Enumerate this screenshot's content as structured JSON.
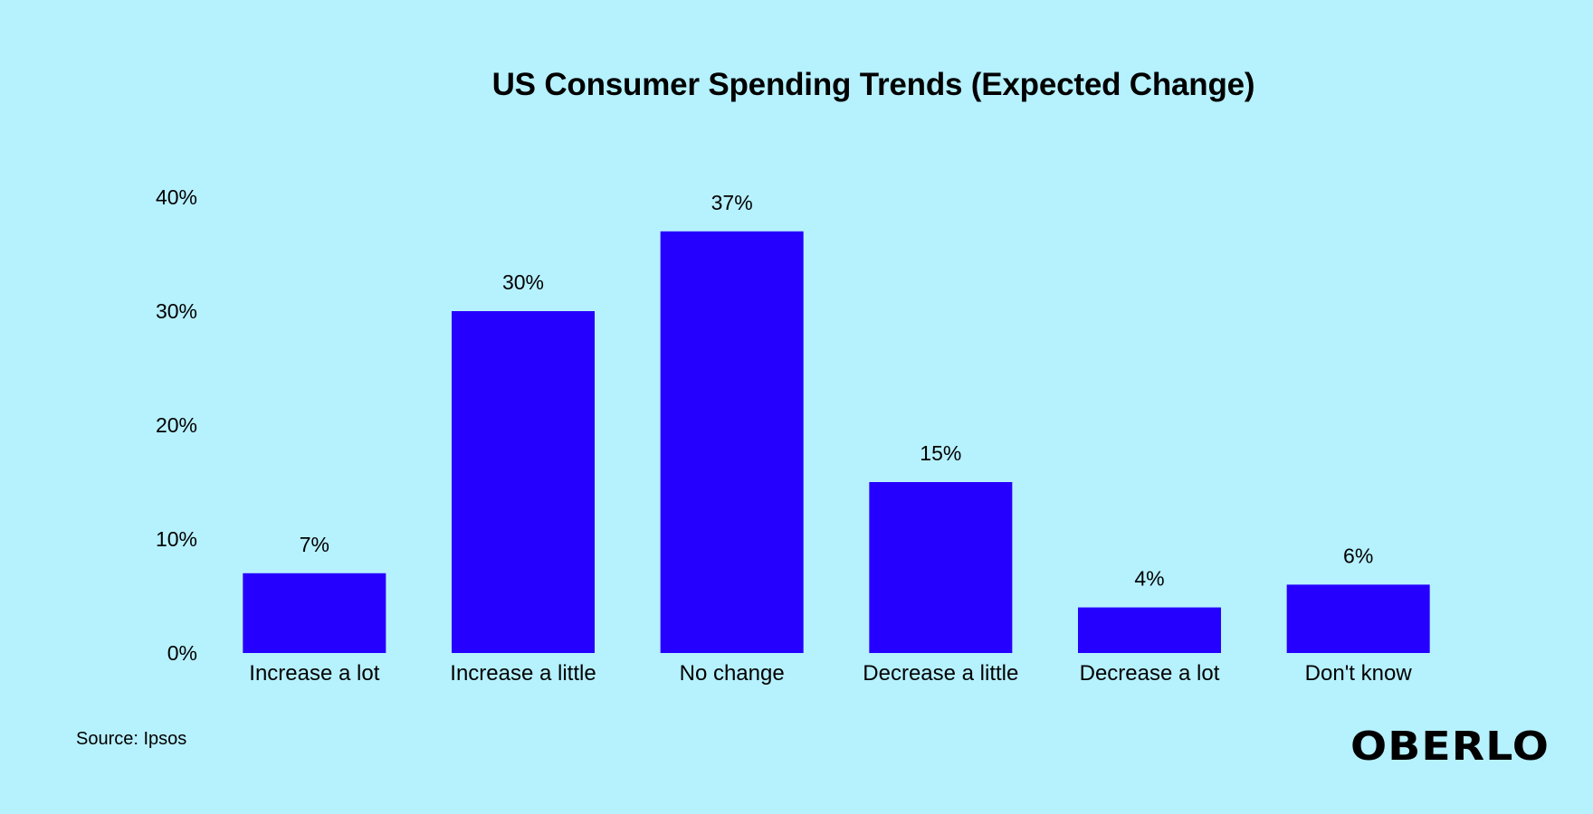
{
  "chart_data": {
    "type": "bar",
    "title": "US Consumer Spending Trends (Expected Change)",
    "categories": [
      "Increase a lot",
      "Increase a little",
      "No change",
      "Decrease a little",
      "Decrease a lot",
      "Don't know"
    ],
    "values": [
      7,
      30,
      37,
      15,
      4,
      6
    ],
    "data_labels": [
      "7%",
      "30%",
      "37%",
      "15%",
      "4%",
      "6%"
    ],
    "y_ticks": [
      0,
      10,
      20,
      30,
      40
    ],
    "y_tick_labels": [
      "0%",
      "10%",
      "20%",
      "30%",
      "40%"
    ],
    "ylim": [
      0,
      40
    ],
    "xlabel": "",
    "ylabel": "",
    "grid": false,
    "bar_color": "#2600ff"
  },
  "footer": {
    "source": "Source: Ipsos",
    "brand": "OBERLO"
  }
}
